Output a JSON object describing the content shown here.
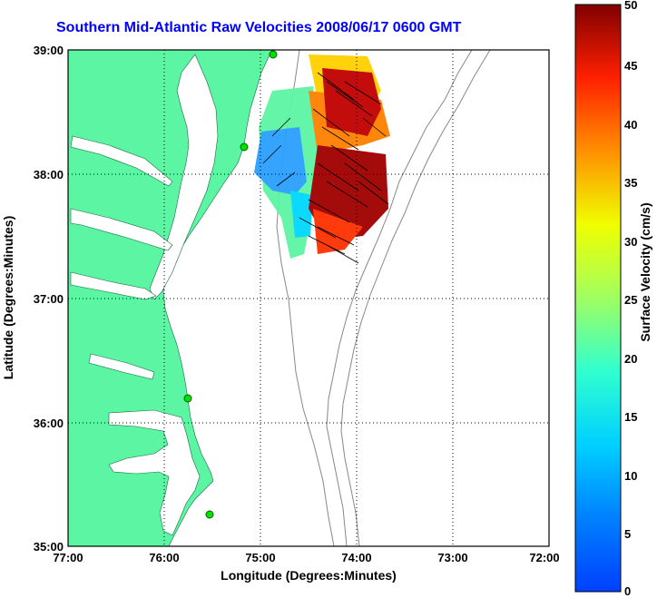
{
  "title": "Southern Mid-Atlantic Raw Velocities 2008/06/17 0600 GMT",
  "map": {
    "xlabel": "Longitude (Degrees:Minutes)",
    "ylabel": "Latitude (Degrees:Minutes)",
    "xticks": [
      "77:00",
      "76:00",
      "75:00",
      "74:00",
      "73:00",
      "72:00"
    ],
    "yticks": [
      "39:00",
      "38:00",
      "37:00",
      "36:00",
      "35:00"
    ],
    "lon_range": [
      -77,
      -72
    ],
    "lat_range": [
      35,
      39
    ],
    "grid": "dotted",
    "land_color": "#5cf5a4",
    "bathymetry_contour_color": "#888888",
    "vector_color": "#000000",
    "hf_radar_sites": [
      {
        "lon": -74.9,
        "lat": 38.97
      },
      {
        "lon": -75.1,
        "lat": 38.23
      },
      {
        "lon": -75.35,
        "lat": 36.19
      },
      {
        "lon": -75.5,
        "lat": 35.25
      }
    ]
  },
  "colorbar": {
    "label": "Surface Velocity (cm/s)",
    "ticks": [
      "50",
      "45",
      "40",
      "35",
      "30",
      "25",
      "20",
      "15",
      "10",
      "5",
      "0"
    ],
    "range": [
      0,
      50
    ],
    "colormap": "jet"
  }
}
